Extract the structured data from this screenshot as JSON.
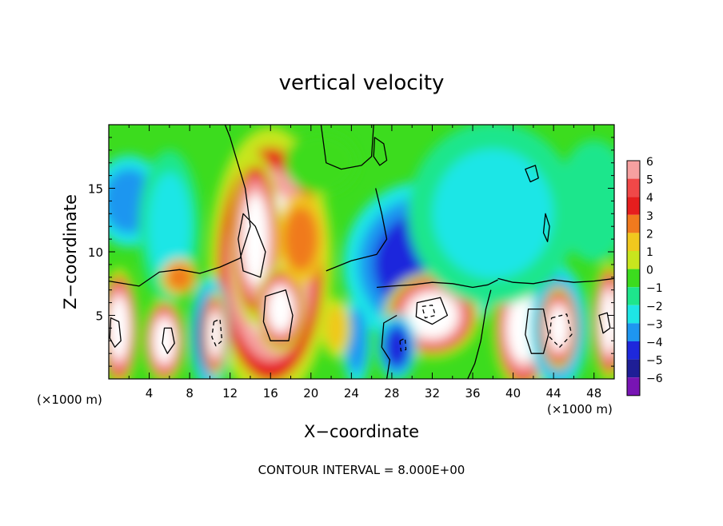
{
  "chart_data": {
    "type": "heatmap",
    "title": "vertical velocity",
    "xlabel": "X−coordinate",
    "ylabel": "Z−coordinate",
    "x_unit_left": "(×1000 m)",
    "x_unit_right": "(×1000 m)",
    "footer": "CONTOUR INTERVAL = 8.000E+00",
    "xlim": [
      0,
      50
    ],
    "ylim": [
      0,
      20
    ],
    "x_ticks": [
      4,
      8,
      12,
      16,
      20,
      24,
      28,
      32,
      36,
      40,
      44,
      48
    ],
    "x_tick_labels": [
      "4",
      "8",
      "12",
      "16",
      "20",
      "24",
      "28",
      "32",
      "36",
      "40",
      "44",
      "48"
    ],
    "y_ticks": [
      5,
      10,
      15
    ],
    "y_tick_labels": [
      "5",
      "10",
      "15"
    ],
    "colorbar": {
      "levels": [
        6,
        5,
        4,
        3,
        2,
        1,
        0,
        -1,
        -2,
        -3,
        -4,
        -5,
        -6
      ],
      "labels": [
        "6",
        "5",
        "4",
        "3",
        "2",
        "1",
        "0",
        "−1",
        "−2",
        "−3",
        "−4",
        "−5",
        "−6"
      ],
      "colors": [
        "#f6a0a0",
        "#f04848",
        "#e61e1e",
        "#f07a1e",
        "#f0c81e",
        "#c8e61e",
        "#3cdc1e",
        "#1ee68c",
        "#1ee6e6",
        "#1e96f0",
        "#1e28dc",
        "#1e1e96",
        "#7814b4"
      ]
    },
    "background_color": "#3cdc1e",
    "features": [
      {
        "x": 16,
        "z": 9,
        "rx": 4.5,
        "rz": 8,
        "value": 7
      },
      {
        "x": 14.5,
        "z": 11,
        "rx": 1.8,
        "rz": 5,
        "value": 7
      },
      {
        "x": 17,
        "z": 5.5,
        "rx": 1.8,
        "rz": 2.5,
        "value": 7
      },
      {
        "x": 1,
        "z": 4,
        "rx": 1.4,
        "rz": 3.5,
        "value": 7
      },
      {
        "x": 5.5,
        "z": 3,
        "rx": 1.5,
        "rz": 2.5,
        "value": 7
      },
      {
        "x": 41,
        "z": 4,
        "rx": 2.2,
        "rz": 3.8,
        "value": 7
      },
      {
        "x": 49.5,
        "z": 4.5,
        "rx": 1.2,
        "rz": 3.5,
        "value": 7
      },
      {
        "x": 10,
        "z": 3.5,
        "rx": 1.5,
        "rz": 3.5,
        "value": -5
      },
      {
        "x": 10.5,
        "z": 3.5,
        "rx": 0.9,
        "rz": 2.5,
        "value": 7
      },
      {
        "x": 44.5,
        "z": 4,
        "rx": 2.2,
        "rz": 3.8,
        "value": -5
      },
      {
        "x": 44.5,
        "z": 4,
        "rx": 1.4,
        "rz": 2.5,
        "value": 7
      },
      {
        "x": 31,
        "z": 9,
        "rx": 6,
        "rz": 5,
        "value": -4
      },
      {
        "x": 32,
        "z": 5,
        "rx": 3.5,
        "rz": 2.5,
        "value": 7
      },
      {
        "x": 28.5,
        "z": 2.5,
        "rx": 1.5,
        "rz": 2,
        "value": -4
      },
      {
        "x": 24.5,
        "z": 3,
        "rx": 1.2,
        "rz": 3,
        "value": -3
      },
      {
        "x": 2,
        "z": 14,
        "rx": 3,
        "rz": 3,
        "value": -3
      },
      {
        "x": 6,
        "z": 12,
        "rx": 2.5,
        "rz": 5,
        "value": -2
      },
      {
        "x": 38,
        "z": 13,
        "rx": 7,
        "rz": 6,
        "value": -2
      },
      {
        "x": 48,
        "z": 14,
        "rx": 3,
        "rz": 4,
        "value": -1
      },
      {
        "x": 21,
        "z": 17,
        "rx": 3,
        "rz": 2,
        "value": 0
      },
      {
        "x": 19,
        "z": 11,
        "rx": 2,
        "rz": 3,
        "value": 3
      },
      {
        "x": 7,
        "z": 8,
        "rx": 1.5,
        "rz": 1.2,
        "value": 3
      },
      {
        "x": 22.5,
        "z": 4,
        "rx": 1.2,
        "rz": 2,
        "value": 2
      }
    ],
    "contours": [
      {
        "style": "solid",
        "points": [
          [
            0,
            7.7
          ],
          [
            3,
            7.3
          ],
          [
            5,
            8.4
          ],
          [
            7,
            8.6
          ],
          [
            9,
            8.3
          ],
          [
            11,
            8.8
          ],
          [
            13,
            9.5
          ],
          [
            14,
            12
          ],
          [
            13.5,
            15
          ],
          [
            12,
            19
          ],
          [
            11.5,
            20
          ]
        ]
      },
      {
        "style": "solid",
        "points": [
          [
            21,
            20
          ],
          [
            21.5,
            17
          ],
          [
            23,
            16.5
          ],
          [
            25,
            16.8
          ],
          [
            26,
            17.5
          ],
          [
            26.2,
            20
          ]
        ]
      },
      {
        "style": "solid",
        "points": [
          [
            21.5,
            8.5
          ],
          [
            24,
            9.3
          ],
          [
            26.5,
            9.8
          ],
          [
            27.5,
            11
          ],
          [
            27,
            13
          ],
          [
            26.4,
            15
          ]
        ]
      },
      {
        "style": "solid",
        "points": [
          [
            26.5,
            7.2
          ],
          [
            28,
            7.3
          ],
          [
            30,
            7.4
          ],
          [
            32,
            7.6
          ],
          [
            34,
            7.5
          ],
          [
            36,
            7.2
          ],
          [
            37.5,
            7.4
          ],
          [
            38.5,
            7.8
          ]
        ]
      },
      {
        "style": "solid",
        "points": [
          [
            38.5,
            7.9
          ],
          [
            40,
            7.6
          ],
          [
            42,
            7.5
          ],
          [
            44,
            7.8
          ],
          [
            46,
            7.6
          ],
          [
            48,
            7.7
          ],
          [
            50,
            7.9
          ]
        ]
      },
      {
        "style": "solid",
        "points": [
          [
            27.5,
            0
          ],
          [
            27.8,
            1.5
          ],
          [
            27,
            2.5
          ],
          [
            27.2,
            4.4
          ],
          [
            28.5,
            5
          ]
        ]
      },
      {
        "style": "solid",
        "points": [
          [
            35.5,
            0
          ],
          [
            36.2,
            1.2
          ],
          [
            36.8,
            3
          ],
          [
            37.3,
            5.5
          ],
          [
            37.8,
            7
          ]
        ]
      },
      {
        "style": "closed",
        "points": [
          [
            41.5,
            5.5
          ],
          [
            43,
            5.5
          ],
          [
            43.5,
            3.5
          ],
          [
            43,
            2
          ],
          [
            41.8,
            2
          ],
          [
            41.2,
            3.5
          ]
        ]
      },
      {
        "style": "closed",
        "points": [
          [
            15.5,
            6.5
          ],
          [
            17.5,
            7
          ],
          [
            18.2,
            5
          ],
          [
            17.8,
            3
          ],
          [
            16,
            3
          ],
          [
            15.3,
            4.5
          ]
        ]
      },
      {
        "style": "closed",
        "points": [
          [
            13.3,
            13
          ],
          [
            14.5,
            12
          ],
          [
            15.5,
            10
          ],
          [
            15,
            8
          ],
          [
            13.3,
            8.5
          ],
          [
            12.8,
            11
          ]
        ]
      },
      {
        "style": "closed",
        "points": [
          [
            26.3,
            19
          ],
          [
            27.2,
            18.5
          ],
          [
            27.5,
            17.2
          ],
          [
            26.8,
            16.8
          ],
          [
            26.2,
            17.5
          ]
        ]
      },
      {
        "style": "closed",
        "points": [
          [
            41.2,
            16.5
          ],
          [
            42.2,
            16.8
          ],
          [
            42.5,
            15.8
          ],
          [
            41.7,
            15.5
          ]
        ]
      },
      {
        "style": "closed",
        "points": [
          [
            43.2,
            13
          ],
          [
            43.6,
            12
          ],
          [
            43.4,
            10.8
          ],
          [
            43,
            11.5
          ]
        ]
      },
      {
        "style": "closed",
        "points": [
          [
            5.5,
            4
          ],
          [
            6.2,
            4
          ],
          [
            6.5,
            2.8
          ],
          [
            5.8,
            2
          ],
          [
            5.3,
            2.8
          ]
        ]
      },
      {
        "style": "closed",
        "points": [
          [
            0.2,
            4.8
          ],
          [
            1,
            4.5
          ],
          [
            1.2,
            3
          ],
          [
            0.6,
            2.5
          ],
          [
            0.1,
            3.2
          ]
        ]
      },
      {
        "style": "closed",
        "points": [
          [
            48.5,
            5
          ],
          [
            49.3,
            5.2
          ],
          [
            49.6,
            4
          ],
          [
            48.9,
            3.6
          ]
        ]
      },
      {
        "style": "closed",
        "points": [
          [
            30.5,
            6
          ],
          [
            32.8,
            6.4
          ],
          [
            33.5,
            5
          ],
          [
            32,
            4.3
          ],
          [
            30.4,
            4.9
          ]
        ]
      },
      {
        "style": "dashed",
        "points": [
          [
            43.8,
            4.8
          ],
          [
            45.3,
            5.1
          ],
          [
            45.8,
            3.5
          ],
          [
            44.6,
            2.5
          ],
          [
            43.6,
            3.3
          ],
          [
            43.8,
            4.8
          ]
        ]
      },
      {
        "style": "dashed",
        "points": [
          [
            10.4,
            4.5
          ],
          [
            11,
            4.7
          ],
          [
            11.2,
            3
          ],
          [
            10.6,
            2.6
          ],
          [
            10.2,
            3.3
          ],
          [
            10.4,
            4.5
          ]
        ]
      },
      {
        "style": "dashed",
        "points": [
          [
            31,
            5.7
          ],
          [
            32,
            5.8
          ],
          [
            32.3,
            5
          ],
          [
            31.3,
            4.8
          ],
          [
            31,
            5.7
          ]
        ]
      },
      {
        "style": "dashed",
        "points": [
          [
            28.8,
            3
          ],
          [
            29.3,
            3.2
          ],
          [
            29.4,
            2.3
          ],
          [
            28.9,
            2.2
          ],
          [
            28.8,
            3
          ]
        ]
      }
    ]
  }
}
